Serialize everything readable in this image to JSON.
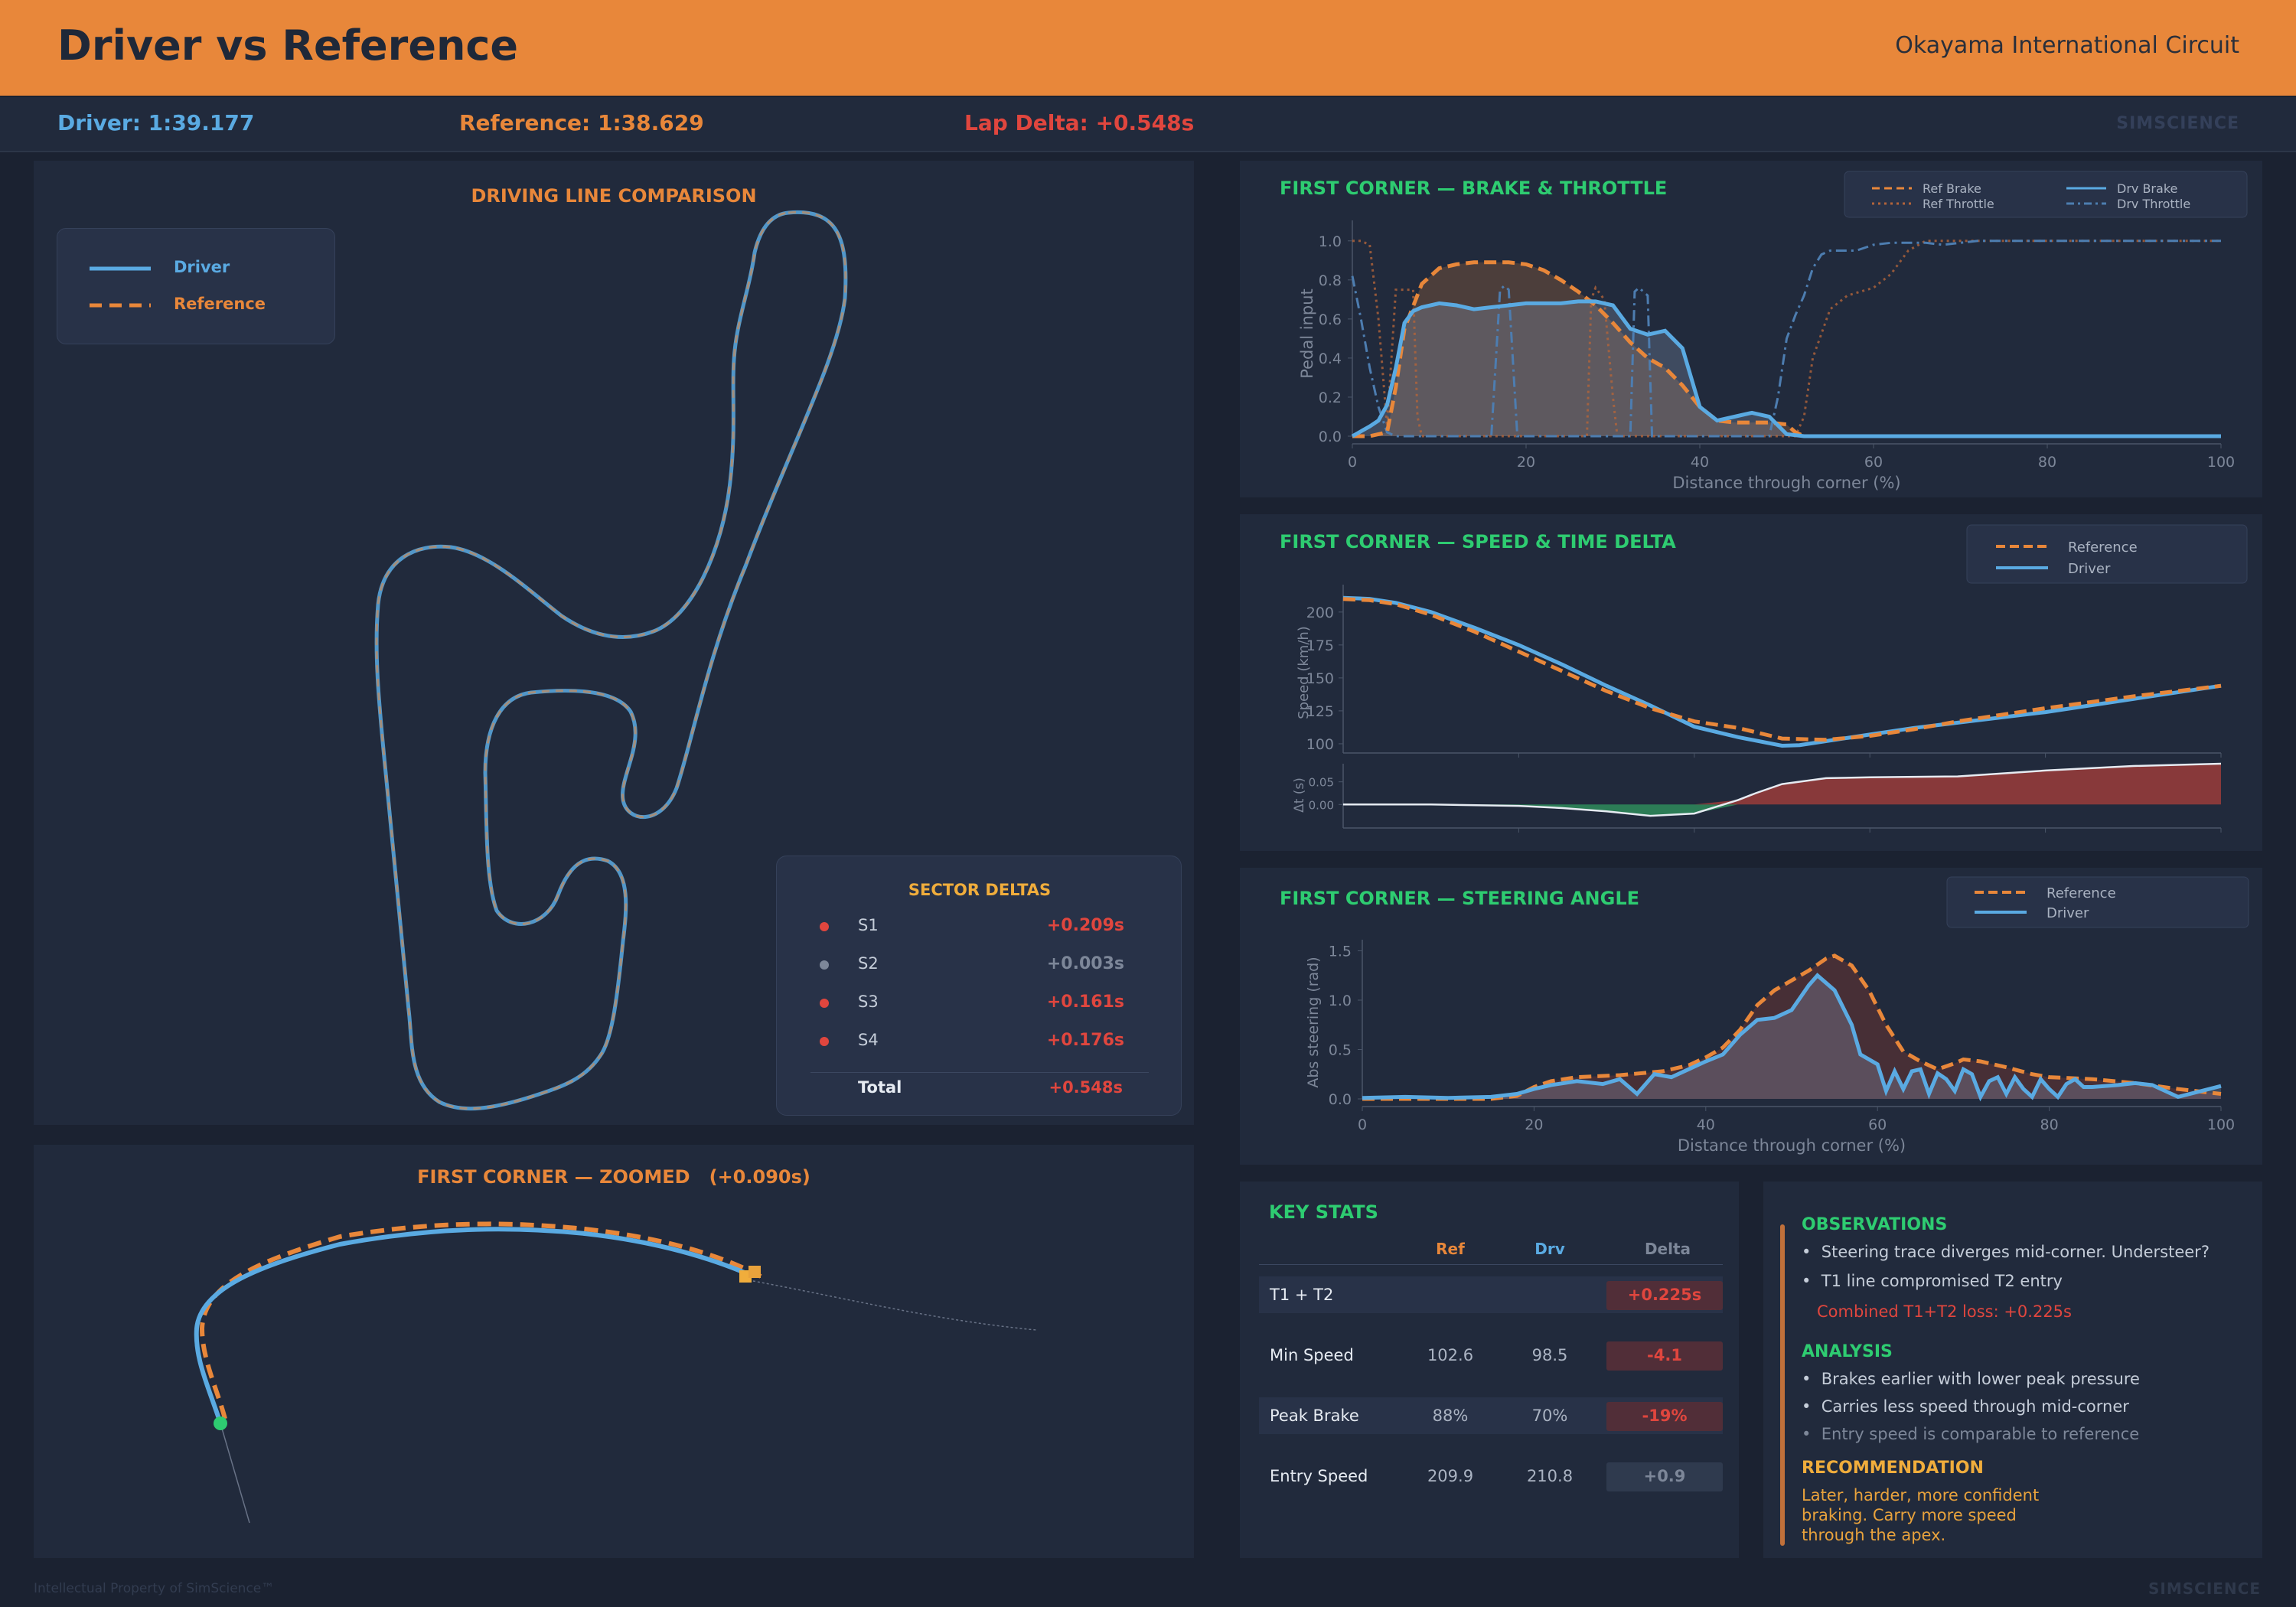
{
  "header": {
    "title": "Driver vs Reference",
    "track": "Okayama International Circuit"
  },
  "summary": {
    "driver": "Driver: 1:39.177",
    "reference": "Reference: 1:38.629",
    "lap_delta": "Lap Delta: +0.548s",
    "brand": "SIMSCIENCE"
  },
  "line_panel": {
    "title": "DRIVING LINE COMPARISON",
    "legend": {
      "driver": "Driver",
      "reference": "Reference"
    }
  },
  "sectors": {
    "title": "SECTOR DELTAS",
    "items": [
      {
        "name": "S1",
        "delta": "+0.209s",
        "color": "#e0463e"
      },
      {
        "name": "S2",
        "delta": "+0.003s",
        "color": "#7d8799"
      },
      {
        "name": "S3",
        "delta": "+0.161s",
        "color": "#e0463e"
      },
      {
        "name": "S4",
        "delta": "+0.176s",
        "color": "#e0463e"
      }
    ],
    "total_label": "Total",
    "total_delta": "+0.548s"
  },
  "zoom_panel": {
    "title": "FIRST CORNER — ZOOMED   (+0.090s)"
  },
  "chart_data": [
    {
      "type": "line",
      "title": "FIRST CORNER — BRAKE & THROTTLE",
      "xlabel": "Distance through corner (%)",
      "ylabel": "Pedal input",
      "xlim": [
        0,
        100
      ],
      "ylim": [
        0,
        1.05
      ],
      "xticks": [
        "0",
        "20",
        "40",
        "60",
        "80",
        "100"
      ],
      "yticks": [
        "0.0",
        "0.2",
        "0.4",
        "0.6",
        "0.8",
        "1.0"
      ],
      "legend": [
        "Ref Brake",
        "Drv Brake",
        "Ref Throttle",
        "Drv Throttle"
      ],
      "series": [
        {
          "name": "Ref Brake",
          "x": [
            0,
            2,
            4,
            5,
            6,
            8,
            10,
            12,
            14,
            16,
            18,
            20,
            22,
            24,
            26,
            28,
            30,
            32,
            34,
            36,
            38,
            40,
            42,
            44,
            46,
            48,
            50,
            51,
            52,
            54,
            100
          ],
          "y": [
            0,
            0,
            0.02,
            0.25,
            0.55,
            0.78,
            0.86,
            0.88,
            0.89,
            0.89,
            0.89,
            0.88,
            0.85,
            0.8,
            0.74,
            0.67,
            0.58,
            0.48,
            0.4,
            0.35,
            0.26,
            0.15,
            0.08,
            0.07,
            0.07,
            0.07,
            0.06,
            0.02,
            0,
            0,
            0
          ]
        },
        {
          "name": "Drv Brake",
          "x": [
            0,
            2,
            3,
            4,
            5,
            6,
            7,
            8,
            10,
            12,
            14,
            16,
            18,
            20,
            22,
            24,
            26,
            28,
            30,
            32,
            34,
            36,
            38,
            40,
            42,
            44,
            46,
            48,
            50,
            52,
            60,
            100
          ],
          "y": [
            0,
            0.05,
            0.08,
            0.16,
            0.35,
            0.58,
            0.64,
            0.66,
            0.68,
            0.67,
            0.65,
            0.66,
            0.67,
            0.68,
            0.68,
            0.68,
            0.69,
            0.69,
            0.67,
            0.55,
            0.52,
            0.54,
            0.45,
            0.15,
            0.08,
            0.1,
            0.12,
            0.1,
            0.01,
            0,
            0,
            0
          ]
        },
        {
          "name": "Ref Throttle",
          "x": [
            0,
            1,
            2,
            3,
            4,
            5,
            5.5,
            6,
            7,
            7.5,
            8,
            15,
            27,
            27.5,
            28,
            29,
            30,
            30.5,
            31,
            32,
            34,
            51,
            52,
            53,
            55,
            57,
            60,
            62,
            64,
            66,
            100
          ],
          "y": [
            1,
            1,
            0.98,
            0.6,
            0.05,
            0.75,
            0.75,
            0.75,
            0.75,
            0.1,
            0,
            0,
            0,
            0.7,
            0.76,
            0.7,
            0.2,
            0,
            0,
            0,
            0,
            0,
            0.1,
            0.4,
            0.65,
            0.72,
            0.76,
            0.83,
            0.95,
            1,
            1
          ]
        },
        {
          "name": "Drv Throttle",
          "x": [
            0,
            1,
            2,
            3,
            4,
            5,
            15,
            16,
            17,
            17.5,
            18,
            19,
            20,
            32,
            32.5,
            33,
            34,
            34.5,
            35,
            48,
            49,
            50,
            51,
            52,
            53,
            54,
            55,
            56,
            58,
            60,
            62,
            64,
            66,
            68,
            70,
            72,
            80,
            100
          ],
          "y": [
            0.82,
            0.6,
            0.35,
            0.15,
            0.02,
            0,
            0,
            0,
            0.75,
            0.77,
            0.75,
            0,
            0,
            0,
            0.74,
            0.76,
            0.72,
            0,
            0,
            0,
            0.2,
            0.5,
            0.62,
            0.72,
            0.86,
            0.93,
            0.95,
            0.95,
            0.95,
            0.98,
            0.99,
            0.99,
            0.99,
            0.98,
            0.99,
            1,
            1,
            1
          ]
        }
      ]
    },
    {
      "type": "line",
      "title": "FIRST CORNER — SPEED & TIME DELTA",
      "ylabel": "Speed (km/h)",
      "xlim": [
        0,
        100
      ],
      "ylim": [
        93,
        215
      ],
      "yticks": [
        "100",
        "125",
        "150",
        "175",
        "200"
      ],
      "legend": [
        "Reference",
        "Driver"
      ],
      "series": [
        {
          "name": "Reference",
          "x": [
            0,
            3,
            6,
            10,
            15,
            20,
            25,
            30,
            35,
            40,
            45,
            50,
            55,
            60,
            65,
            70,
            80,
            90,
            100
          ],
          "y": [
            209.9,
            209,
            206,
            198,
            185,
            170,
            155,
            140,
            127,
            117,
            112,
            104,
            103,
            106,
            111,
            117,
            127,
            136,
            144
          ]
        },
        {
          "name": "Driver",
          "x": [
            0,
            3,
            6,
            10,
            15,
            20,
            25,
            30,
            35,
            40,
            45,
            50,
            52,
            55,
            60,
            65,
            70,
            80,
            90,
            100
          ],
          "y": [
            210.8,
            210,
            207,
            200,
            188,
            175,
            160,
            144,
            129,
            113,
            105,
            98.5,
            99,
            102,
            107,
            112,
            116,
            124,
            134,
            144
          ]
        }
      ],
      "subplot": {
        "ylabel": "Δt (s)",
        "ylim": [
          -0.035,
          0.09
        ],
        "yticks": [
          "0.05",
          "0.00"
        ],
        "x": [
          0,
          10,
          20,
          25,
          30,
          35,
          40,
          45,
          47,
          50,
          55,
          60,
          70,
          80,
          90,
          100
        ],
        "y": [
          0,
          0,
          -0.003,
          -0.008,
          -0.015,
          -0.025,
          -0.02,
          0.01,
          0.025,
          0.045,
          0.058,
          0.06,
          0.062,
          0.075,
          0.085,
          0.09
        ]
      }
    },
    {
      "type": "area",
      "title": "FIRST CORNER — STEERING ANGLE",
      "xlabel": "Distance through corner (%)",
      "ylabel": "Abs steering (rad)",
      "xlim": [
        0,
        100
      ],
      "ylim": [
        0,
        1.55
      ],
      "xticks": [
        "0",
        "20",
        "40",
        "60",
        "80",
        "100"
      ],
      "yticks": [
        "0.0",
        "0.5",
        "1.0",
        "1.5"
      ],
      "legend": [
        "Reference",
        "Driver"
      ],
      "series": [
        {
          "name": "Reference",
          "x": [
            0,
            10,
            15,
            18,
            20,
            22,
            25,
            30,
            35,
            38,
            40,
            42,
            44,
            46,
            48,
            50,
            52,
            54,
            55,
            57,
            59,
            61,
            63,
            65,
            67,
            69,
            70,
            72,
            75,
            78,
            80,
            85,
            90,
            95,
            100
          ],
          "y": [
            0,
            0,
            0,
            0.03,
            0.12,
            0.18,
            0.22,
            0.24,
            0.28,
            0.34,
            0.42,
            0.52,
            0.7,
            0.95,
            1.1,
            1.2,
            1.3,
            1.42,
            1.45,
            1.35,
            1.1,
            0.75,
            0.48,
            0.38,
            0.3,
            0.36,
            0.4,
            0.38,
            0.32,
            0.25,
            0.22,
            0.2,
            0.16,
            0.1,
            0.05
          ]
        },
        {
          "name": "Driver",
          "x": [
            0,
            5,
            10,
            15,
            18,
            20,
            22,
            25,
            28,
            30,
            32,
            34,
            36,
            38,
            40,
            42,
            44,
            46,
            48,
            50,
            52,
            53,
            55,
            57,
            58,
            60,
            61,
            62,
            63,
            64,
            65,
            66,
            67,
            68,
            69,
            70,
            71,
            72,
            73,
            74,
            75,
            76,
            77,
            78,
            79,
            80,
            81,
            82,
            83,
            84,
            85,
            88,
            90,
            92,
            95,
            100
          ],
          "y": [
            0.01,
            0.02,
            0.01,
            0.02,
            0.05,
            0.1,
            0.14,
            0.18,
            0.15,
            0.2,
            0.05,
            0.25,
            0.22,
            0.3,
            0.38,
            0.45,
            0.65,
            0.8,
            0.82,
            0.9,
            1.15,
            1.25,
            1.1,
            0.75,
            0.45,
            0.35,
            0.08,
            0.28,
            0.1,
            0.28,
            0.3,
            0.05,
            0.26,
            0.2,
            0.08,
            0.3,
            0.25,
            0.02,
            0.18,
            0.22,
            0.05,
            0.22,
            0.1,
            0.02,
            0.2,
            0.1,
            0.02,
            0.15,
            0.2,
            0.12,
            0.12,
            0.14,
            0.16,
            0.14,
            0.02,
            0.13
          ]
        }
      ]
    }
  ],
  "key_stats": {
    "title": "KEY STATS",
    "headers": {
      "ref": "Ref",
      "drv": "Drv",
      "delta": "Delta"
    },
    "rows": [
      {
        "label": "T1 + T2",
        "ref": "",
        "drv": "",
        "delta": "+0.225s",
        "delta_color": "#e0463e",
        "pill": "#512e38"
      },
      {
        "label": "Min Speed",
        "ref": "102.6",
        "drv": "98.5",
        "delta": "-4.1",
        "delta_color": "#e0463e",
        "pill": "#512e38"
      },
      {
        "label": "Peak Brake",
        "ref": "88%",
        "drv": "70%",
        "delta": "-19%",
        "delta_color": "#e0463e",
        "pill": "#512e38"
      },
      {
        "label": "Entry Speed",
        "ref": "209.9",
        "drv": "210.8",
        "delta": "+0.9",
        "delta_color": "#7d8799",
        "pill": "#2f3a4e"
      }
    ]
  },
  "notes": {
    "observations_title": "OBSERVATIONS",
    "observations": [
      "Steering trace diverges mid-corner. Understeer?",
      "T1 line compromised T2 entry"
    ],
    "combined_loss": "Combined T1+T2 loss: +0.225s",
    "analysis_title": "ANALYSIS",
    "analysis": [
      "Brakes earlier with lower peak pressure",
      "Carries less speed through mid-corner",
      "Entry speed is comparable to reference"
    ],
    "recommendation_title": "RECOMMENDATION",
    "recommendation": [
      "Later, harder, more confident",
      "braking. Carry more speed",
      "through the apex."
    ]
  },
  "footer": {
    "copyright": "Intellectual Property of SimScience™",
    "brand": "SIMSCIENCE"
  },
  "colors": {
    "accent": "#e8873a",
    "driver": "#5aaae2",
    "loss": "#e0463e",
    "gain": "#2ecc71"
  }
}
